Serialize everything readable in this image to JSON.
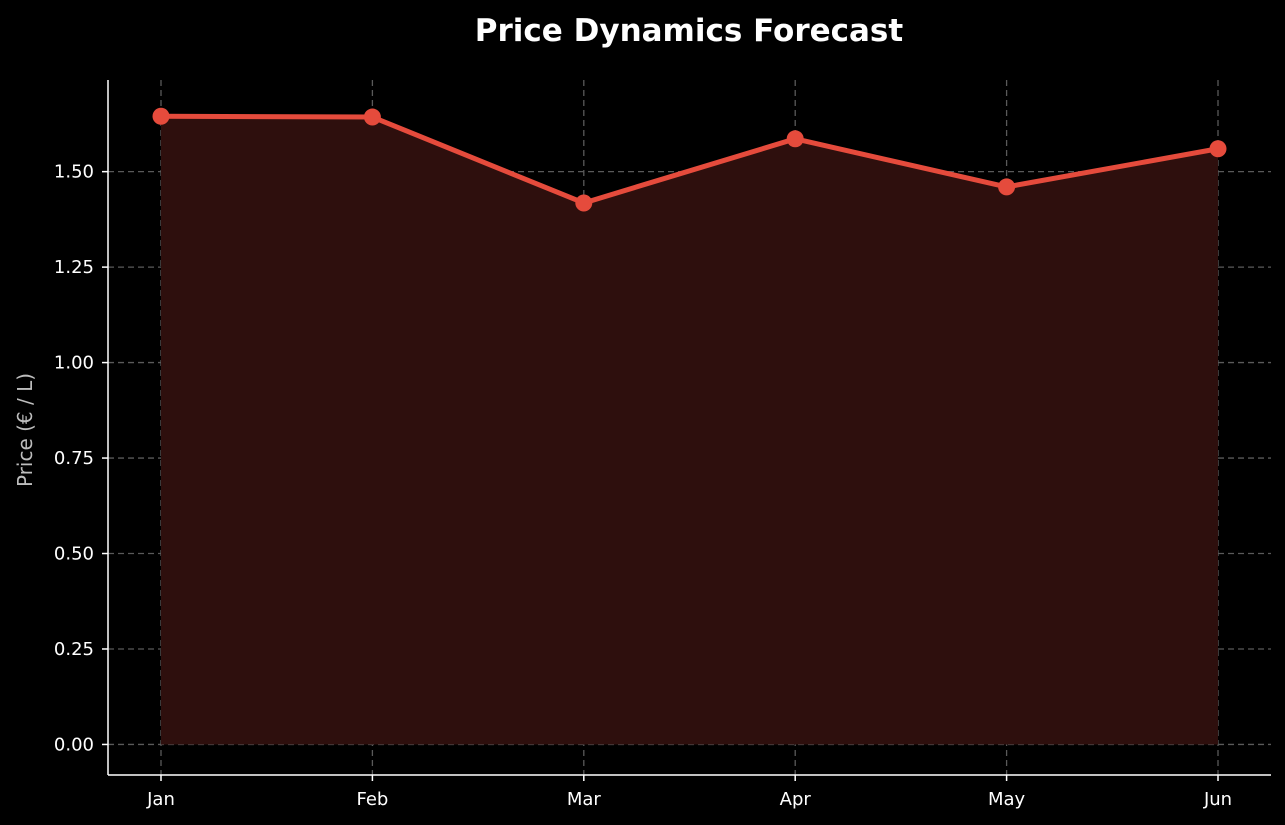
{
  "chart_data": {
    "type": "area",
    "title": "Price Dynamics Forecast",
    "xlabel": "",
    "ylabel": "Price (€ / L)",
    "categories": [
      "Jan",
      "Feb",
      "Mar",
      "Apr",
      "May",
      "Jun"
    ],
    "series": [
      {
        "values": [
          1.645,
          1.643,
          1.418,
          1.586,
          1.46,
          1.56
        ],
        "color": "#e54b3c",
        "fill_color": "#2e0f0d"
      }
    ],
    "ylim": [
      -0.08,
      1.74
    ],
    "yticks": [
      0.0,
      0.25,
      0.5,
      0.75,
      1.0,
      1.25,
      1.5
    ],
    "ytick_labels": [
      "0.00",
      "0.25",
      "0.50",
      "0.75",
      "1.00",
      "1.25",
      "1.50"
    ],
    "grid": true,
    "background": "#000000"
  }
}
